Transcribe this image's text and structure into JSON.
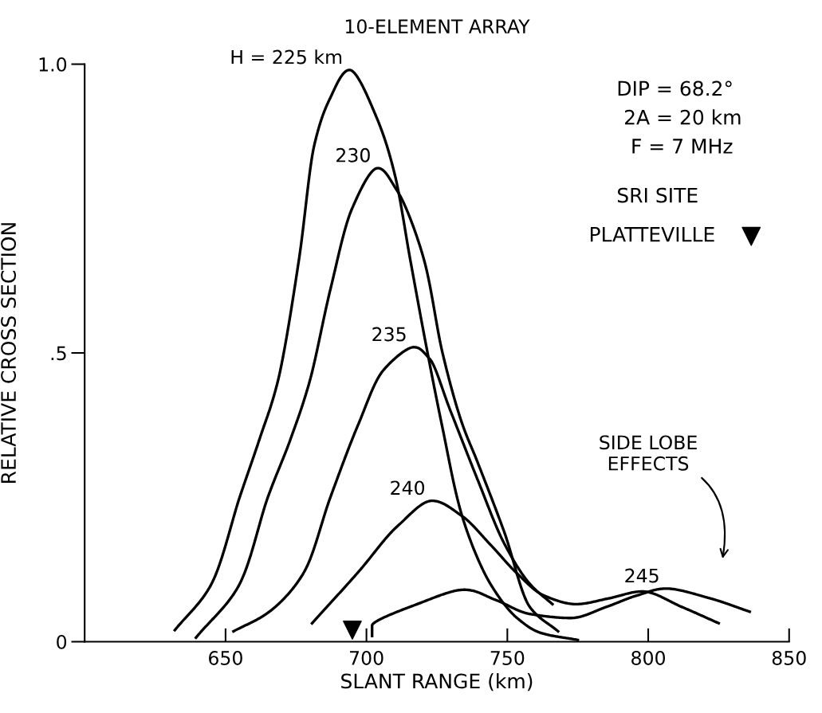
{
  "chart_data": {
    "type": "line",
    "title": "10-ELEMENT ARRAY",
    "xlabel": "SLANT RANGE (km)",
    "ylabel": "RELATIVE CROSS SECTION",
    "xlim": [
      600,
      850
    ],
    "ylim": [
      0,
      1.0
    ],
    "xticks": [
      650,
      700,
      750,
      800,
      850
    ],
    "yticks": [
      0,
      {
        "value": 0.5,
        "label": ".5"
      },
      {
        "value": 1.0,
        "label": "1.0"
      }
    ],
    "grid": false,
    "marker": "none",
    "line_style": "solid",
    "legend": "right",
    "series": [
      {
        "name": "H = 225 km",
        "color": "#000000",
        "x": [
          632,
          645,
          655,
          662,
          668.5,
          676,
          681.5,
          687,
          694,
          703.4,
          710,
          715.6,
          721.3,
          727,
          733.8,
          744,
          753.7,
          762,
          775
        ],
        "values": [
          0.02,
          0.1,
          0.25,
          0.35,
          0.45,
          0.66,
          0.86,
          0.94,
          0.99,
          0.91,
          0.81,
          0.66,
          0.51,
          0.37,
          0.22,
          0.1,
          0.04,
          0.015,
          0.003
        ]
      },
      {
        "name": "230",
        "color": "#000000",
        "x": [
          639.5,
          655,
          665,
          673,
          679.8,
          687.2,
          694.9,
          704,
          711,
          720.5,
          727,
          733.8,
          739.5,
          748.9,
          758,
          768
        ],
        "values": [
          0.007,
          0.1,
          0.25,
          0.35,
          0.45,
          0.61,
          0.75,
          0.82,
          0.78,
          0.66,
          0.5,
          0.38,
          0.31,
          0.19,
          0.06,
          0.018
        ]
      },
      {
        "name": "235",
        "color": "#000000",
        "x": [
          652.8,
          665,
          677.8,
          687.2,
          697,
          706,
          716.8,
          722.4,
          729.8,
          739.5,
          748.9,
          758,
          766
        ],
        "values": [
          0.018,
          0.05,
          0.12,
          0.25,
          0.375,
          0.47,
          0.51,
          0.49,
          0.4,
          0.28,
          0.17,
          0.1,
          0.065
        ]
      },
      {
        "name": "240",
        "color": "#000000",
        "x": [
          680.7,
          697,
          711,
          723.3,
          733.8,
          744,
          753.7,
          763,
          774.4,
          786,
          798,
          812,
          825
        ],
        "values": [
          0.032,
          0.12,
          0.2,
          0.244,
          0.218,
          0.168,
          0.117,
          0.08,
          0.065,
          0.075,
          0.087,
          0.06,
          0.032
        ]
      },
      {
        "name": "245",
        "color": "#000000",
        "x": [
          702,
          702,
          718,
          734.7,
          746,
          758,
          772.4,
          785,
          796,
          806.5,
          822,
          836
        ],
        "values": [
          0.01,
          0.028,
          0.065,
          0.09,
          0.072,
          0.048,
          0.041,
          0.06,
          0.08,
          0.092,
          0.075,
          0.052
        ]
      },
      {
        "name": "PLATTEVILLE",
        "type": "scatter",
        "marker": "triangle",
        "color": "#000000",
        "x": [
          695
        ],
        "values": [
          0.02
        ]
      }
    ],
    "annotations": [
      "DIP = 68.2°",
      "2A = 20 km",
      "F = 7 MHz",
      "SRI SITE",
      "SIDE LOBE\nEFFECTS"
    ]
  }
}
